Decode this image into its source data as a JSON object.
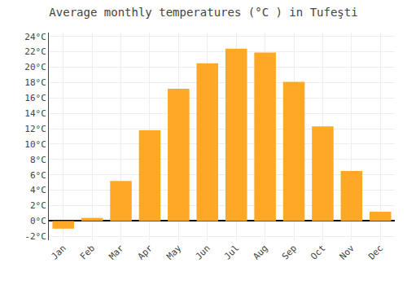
{
  "chart_data": {
    "type": "bar",
    "title": "Average monthly temperatures (°C ) in Tufeşti",
    "categories": [
      "Jan",
      "Feb",
      "Mar",
      "Apr",
      "May",
      "Jun",
      "Jul",
      "Aug",
      "Sep",
      "Oct",
      "Nov",
      "Dec"
    ],
    "values": [
      -1.0,
      0.4,
      5.2,
      11.8,
      17.2,
      20.5,
      22.4,
      21.9,
      18.1,
      12.3,
      6.5,
      1.2
    ],
    "color": "#FFA726",
    "ylim": [
      -2.5,
      24.5
    ],
    "yticks": [
      {
        "value": -2,
        "label": "-2°C"
      },
      {
        "value": 0,
        "label": "0°C"
      },
      {
        "value": 2,
        "label": "2°C"
      },
      {
        "value": 4,
        "label": "4°C"
      },
      {
        "value": 6,
        "label": "6°C"
      },
      {
        "value": 8,
        "label": "8°C"
      },
      {
        "value": 10,
        "label": "10°C"
      },
      {
        "value": 12,
        "label": "12°C"
      },
      {
        "value": 14,
        "label": "14°C"
      },
      {
        "value": 16,
        "label": "16°C"
      },
      {
        "value": 18,
        "label": "18°C"
      },
      {
        "value": 20,
        "label": "20°C"
      },
      {
        "value": 22,
        "label": "22°C"
      },
      {
        "value": 24,
        "label": "24°C"
      }
    ],
    "grid": true
  }
}
